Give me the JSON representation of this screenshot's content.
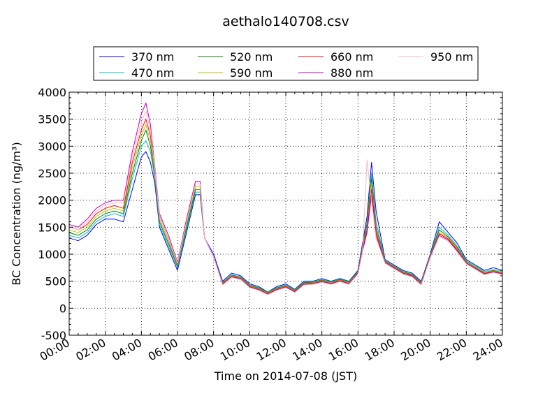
{
  "chart_data": {
    "type": "line",
    "title": "aethalo140708.csv",
    "xlabel": "Time on 2014-07-08 (JST)",
    "ylabel": "BC Concentration (ng/m³)",
    "xlim": [
      "00:00",
      "24:00"
    ],
    "ylim": [
      -500,
      4000
    ],
    "x_tick_labels": [
      "00:00",
      "02:00",
      "04:00",
      "06:00",
      "08:00",
      "10:00",
      "12:00",
      "14:00",
      "16:00",
      "18:00",
      "20:00",
      "22:00",
      "24:00"
    ],
    "y_ticks": [
      -500,
      0,
      500,
      1000,
      1500,
      2000,
      2500,
      3000,
      3500,
      4000
    ],
    "grid": true,
    "legend_position": "top",
    "x_hours": [
      0,
      0.5,
      1,
      1.5,
      2,
      2.5,
      3,
      3.5,
      4,
      4.25,
      4.5,
      4.75,
      5,
      5.5,
      6,
      6.5,
      7,
      7.25,
      7.5,
      8,
      8.5,
      9,
      9.5,
      10,
      10.5,
      11,
      11.5,
      12,
      12.5,
      13,
      13.5,
      14,
      14.5,
      15,
      15.5,
      16,
      16.25,
      16.5,
      16.75,
      17,
      17.5,
      18,
      18.5,
      19,
      19.5,
      20,
      20.5,
      21,
      21.5,
      22,
      22.5,
      23,
      23.5,
      24
    ],
    "series": [
      {
        "name": "370 nm",
        "color": "#0000ff",
        "values": [
          1300,
          1250,
          1350,
          1550,
          1650,
          1650,
          1600,
          2200,
          2800,
          2900,
          2700,
          2300,
          1500,
          1100,
          700,
          1400,
          2100,
          2100,
          1300,
          1000,
          500,
          650,
          600,
          450,
          400,
          300,
          400,
          450,
          350,
          500,
          500,
          550,
          500,
          550,
          500,
          700,
          1200,
          1700,
          2700,
          1800,
          900,
          800,
          700,
          650,
          500,
          1000,
          1600,
          1400,
          1200,
          900,
          800,
          700,
          750,
          700
        ]
      },
      {
        "name": "470 nm",
        "color": "#00bfbf",
        "values": [
          1350,
          1300,
          1400,
          1600,
          1700,
          1750,
          1700,
          2400,
          3000,
          3100,
          2900,
          2400,
          1550,
          1150,
          750,
          1450,
          2150,
          2150,
          1300,
          950,
          480,
          620,
          580,
          430,
          380,
          300,
          380,
          430,
          340,
          480,
          490,
          530,
          490,
          540,
          490,
          680,
          1150,
          1600,
          2500,
          1600,
          880,
          780,
          680,
          630,
          480,
          980,
          1500,
          1350,
          1150,
          880,
          780,
          680,
          720,
          680
        ]
      },
      {
        "name": "520 nm",
        "color": "#008000",
        "values": [
          1400,
          1350,
          1450,
          1650,
          1750,
          1800,
          1750,
          2500,
          3100,
          3300,
          3000,
          2450,
          1600,
          1200,
          780,
          1500,
          2200,
          2200,
          1300,
          950,
          470,
          610,
          570,
          420,
          370,
          290,
          370,
          420,
          330,
          470,
          480,
          520,
          480,
          530,
          480,
          670,
          1120,
          1550,
          2400,
          1500,
          870,
          770,
          670,
          620,
          470,
          970,
          1450,
          1320,
          1120,
          860,
          760,
          660,
          700,
          660
        ]
      },
      {
        "name": "590 nm",
        "color": "#bfbf00",
        "values": [
          1450,
          1400,
          1500,
          1700,
          1800,
          1850,
          1800,
          2600,
          3200,
          3400,
          3100,
          2500,
          1650,
          1250,
          800,
          1550,
          2250,
          2250,
          1300,
          950,
          460,
          600,
          560,
          410,
          360,
          280,
          360,
          410,
          320,
          460,
          470,
          510,
          470,
          520,
          470,
          660,
          1100,
          1500,
          2300,
          1450,
          860,
          760,
          660,
          610,
          460,
          960,
          1400,
          1300,
          1100,
          850,
          750,
          650,
          690,
          650
        ]
      },
      {
        "name": "660 nm",
        "color": "#ff0000",
        "values": [
          1500,
          1450,
          1550,
          1750,
          1850,
          1900,
          1850,
          2700,
          3300,
          3500,
          3200,
          2550,
          1700,
          1300,
          820,
          1600,
          2300,
          2300,
          1300,
          950,
          450,
          590,
          550,
          400,
          350,
          270,
          350,
          400,
          310,
          450,
          460,
          500,
          460,
          510,
          460,
          650,
          1080,
          1450,
          2200,
          1400,
          850,
          750,
          650,
          600,
          450,
          950,
          1380,
          1280,
          1080,
          840,
          740,
          640,
          680,
          640
        ]
      },
      {
        "name": "880 nm",
        "color": "#bf00bf",
        "values": [
          1550,
          1500,
          1650,
          1850,
          1950,
          2000,
          2000,
          2900,
          3600,
          3800,
          3400,
          2600,
          1750,
          1350,
          850,
          1650,
          2350,
          2350,
          1300,
          950,
          440,
          580,
          540,
          390,
          340,
          260,
          340,
          390,
          300,
          440,
          450,
          490,
          450,
          500,
          450,
          640,
          1060,
          1400,
          2100,
          1350,
          840,
          740,
          640,
          590,
          440,
          940,
          1350,
          1260,
          1060,
          830,
          730,
          630,
          670,
          630
        ]
      },
      {
        "name": "950 nm",
        "color": "#ffb6c1",
        "values": [
          1500,
          1450,
          1600,
          1800,
          1900,
          1950,
          1950,
          2800,
          3450,
          3650,
          3300,
          2550,
          1700,
          1300,
          830,
          1600,
          2300,
          2300,
          1300,
          950,
          430,
          570,
          530,
          380,
          330,
          250,
          330,
          380,
          290,
          430,
          440,
          480,
          440,
          490,
          440,
          630,
          1040,
          2750,
          2000,
          1300,
          830,
          730,
          630,
          580,
          430,
          930,
          1330,
          1240,
          1040,
          820,
          720,
          620,
          660,
          620
        ]
      }
    ]
  }
}
